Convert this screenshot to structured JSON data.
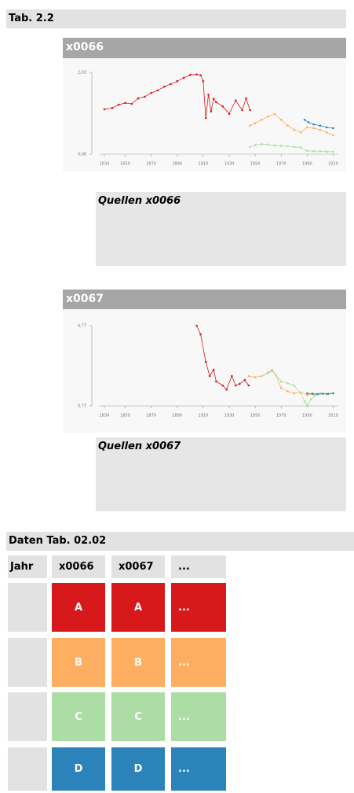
{
  "header": {
    "title": "Tab. 2.2"
  },
  "chart_data": [
    {
      "type": "line",
      "title": "x0066",
      "source": "Quellen x0066",
      "xlim": [
        1834,
        2010
      ],
      "xticks": [
        1834,
        1850,
        1870,
        1890,
        1910,
        1930,
        1950,
        1970,
        1990,
        2010
      ],
      "ylim": [
        0.08,
        2.03
      ],
      "yticks": [
        {
          "value": 0.08,
          "label": "0,08"
        },
        {
          "value": 2.03,
          "label": "2,03"
        }
      ],
      "series": [
        {
          "color": "#d7191c",
          "x": [
            1834,
            1840,
            1845,
            1850,
            1855,
            1860,
            1865,
            1870,
            1875,
            1880,
            1885,
            1890,
            1895,
            1900,
            1905,
            1908,
            1910,
            1912,
            1914,
            1916,
            1918,
            1920,
            1925,
            1930,
            1935,
            1940,
            1943,
            1946
          ],
          "values": [
            1.15,
            1.18,
            1.26,
            1.3,
            1.28,
            1.41,
            1.45,
            1.54,
            1.6,
            1.69,
            1.75,
            1.82,
            1.9,
            1.97,
            1.98,
            1.96,
            1.82,
            0.94,
            1.5,
            1.1,
            1.4,
            1.32,
            1.22,
            1.04,
            1.36,
            1.13,
            1.41,
            1.13
          ]
        },
        {
          "color": "#fdae61",
          "x": [
            1946,
            1950,
            1955,
            1960,
            1965,
            1970,
            1975,
            1980,
            1985,
            1990,
            1995,
            2000,
            2005,
            2010
          ],
          "values": [
            0.76,
            0.82,
            0.9,
            0.98,
            1.04,
            0.9,
            0.76,
            0.66,
            0.6,
            0.72,
            0.7,
            0.66,
            0.6,
            0.53
          ]
        },
        {
          "color": "#abdda4",
          "x": [
            1946,
            1950,
            1955,
            1960,
            1965,
            1970,
            1975,
            1980,
            1985,
            1990,
            1995,
            2000,
            2005,
            2010
          ],
          "values": [
            0.25,
            0.3,
            0.32,
            0.31,
            0.29,
            0.28,
            0.27,
            0.25,
            0.24,
            0.16,
            0.15,
            0.15,
            0.14,
            0.14
          ]
        },
        {
          "color": "#2b83ba",
          "x": [
            1988,
            1991,
            1995,
            2000,
            2005,
            2010
          ],
          "values": [
            0.9,
            0.84,
            0.79,
            0.76,
            0.72,
            0.7
          ]
        }
      ]
    },
    {
      "type": "line",
      "title": "x0067",
      "source": "Quellen x0067",
      "xlim": [
        1834,
        2010
      ],
      "xticks": [
        1834,
        1850,
        1870,
        1890,
        1910,
        1930,
        1950,
        1970,
        1990,
        2010
      ],
      "ylim": [
        0.77,
        4.77
      ],
      "yticks": [
        {
          "value": 0.77,
          "label": "0,77"
        },
        {
          "value": 4.77,
          "label": "4,77"
        }
      ],
      "series": [
        {
          "color": "#d7191c",
          "x": [
            1905,
            1908,
            1912,
            1915,
            1918,
            1920,
            1925,
            1928,
            1932,
            1935,
            1938,
            1942,
            1945
          ],
          "values": [
            4.77,
            4.34,
            2.97,
            2.26,
            2.57,
            1.99,
            1.79,
            1.59,
            2.26,
            1.79,
            1.87,
            2.06,
            1.79
          ]
        },
        {
          "color": "#fdae61",
          "x": [
            1945,
            1950,
            1955,
            1960,
            1963,
            1966,
            1970,
            1975,
            1980,
            1985,
            1990,
            1995,
            2000,
            2005,
            2010
          ],
          "values": [
            2.26,
            2.2,
            2.26,
            2.45,
            2.57,
            2.3,
            1.67,
            1.5,
            1.4,
            1.45,
            1.32,
            1.35,
            1.38,
            1.36,
            1.4
          ]
        },
        {
          "color": "#abdda4",
          "x": [
            1955,
            1960,
            1963,
            1966,
            1970,
            1975,
            1980,
            1985,
            1988,
            1990,
            1993,
            1996,
            2000,
            2005,
            2010
          ],
          "values": [
            2.26,
            2.4,
            2.5,
            2.3,
            1.99,
            1.9,
            1.79,
            1.4,
            1.0,
            0.81,
            1.1,
            1.3,
            1.4,
            1.38,
            1.4
          ]
        },
        {
          "color": "#2b83ba",
          "x": [
            1990,
            1994,
            1998,
            2002,
            2006,
            2010
          ],
          "values": [
            1.4,
            1.38,
            1.36,
            1.38,
            1.37,
            1.4
          ]
        }
      ]
    }
  ],
  "table": {
    "title": "Daten Tab. 02.02",
    "header": [
      "Jahr",
      "x0066",
      "x0067",
      "..."
    ],
    "rows": [
      {
        "color": "#d7191c",
        "cells": [
          "A",
          "A",
          "..."
        ]
      },
      {
        "color": "#fdae61",
        "cells": [
          "B",
          "B",
          "..."
        ]
      },
      {
        "color": "#abdda4",
        "cells": [
          "C",
          "C",
          "..."
        ]
      },
      {
        "color": "#2b83ba",
        "cells": [
          "D",
          "D",
          "..."
        ]
      }
    ]
  }
}
